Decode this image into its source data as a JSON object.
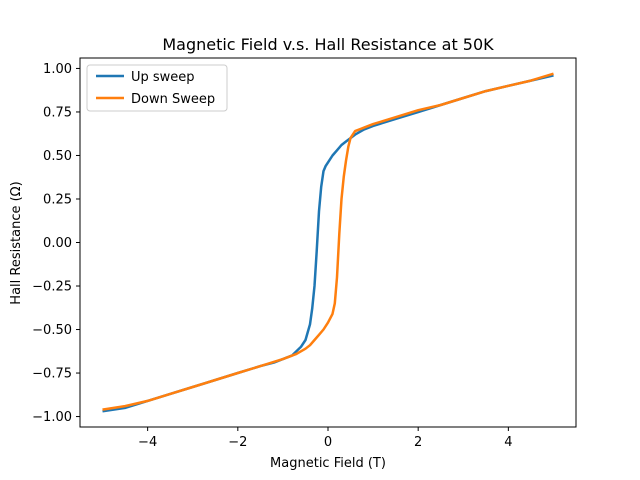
{
  "chart_data": {
    "type": "line",
    "title": "Magnetic Field v.s. Hall Resistance at 50K",
    "xlabel": "Magnetic Field (T)",
    "ylabel": "Hall Resistance (Ω)",
    "xlim": [
      -5.5,
      5.5
    ],
    "ylim": [
      -1.06,
      1.06
    ],
    "xticks": [
      -4,
      -2,
      0,
      2,
      4
    ],
    "xtick_labels": [
      "−4",
      "−2",
      "0",
      "2",
      "4"
    ],
    "yticks": [
      -1.0,
      -0.75,
      -0.5,
      -0.25,
      0.0,
      0.25,
      0.5,
      0.75,
      1.0
    ],
    "ytick_labels": [
      "−1.00",
      "−0.75",
      "−0.50",
      "−0.25",
      "0.00",
      "0.25",
      "0.50",
      "0.75",
      "1.00"
    ],
    "grid": false,
    "legend_position": "upper-left",
    "series": [
      {
        "name": "Up sweep",
        "color": "#1f77b4",
        "x": [
          -5.0,
          -4.5,
          -4.0,
          -3.5,
          -3.0,
          -2.5,
          -2.0,
          -1.5,
          -1.2,
          -1.0,
          -0.8,
          -0.6,
          -0.5,
          -0.4,
          -0.35,
          -0.3,
          -0.25,
          -0.2,
          -0.15,
          -0.1,
          -0.05,
          0.0,
          0.1,
          0.2,
          0.3,
          0.4,
          0.5,
          0.6,
          0.8,
          1.0,
          1.5,
          2.0,
          2.5,
          3.0,
          3.5,
          4.0,
          4.5,
          5.0
        ],
        "y": [
          -0.97,
          -0.95,
          -0.91,
          -0.87,
          -0.83,
          -0.79,
          -0.75,
          -0.71,
          -0.69,
          -0.67,
          -0.65,
          -0.6,
          -0.56,
          -0.47,
          -0.38,
          -0.25,
          -0.05,
          0.18,
          0.32,
          0.41,
          0.44,
          0.46,
          0.5,
          0.53,
          0.56,
          0.58,
          0.6,
          0.62,
          0.65,
          0.67,
          0.71,
          0.75,
          0.79,
          0.83,
          0.87,
          0.9,
          0.93,
          0.96
        ]
      },
      {
        "name": "Down Sweep",
        "color": "#ff7f0e",
        "x": [
          5.0,
          4.5,
          4.0,
          3.5,
          3.0,
          2.5,
          2.0,
          1.5,
          1.0,
          0.8,
          0.6,
          0.5,
          0.45,
          0.4,
          0.35,
          0.3,
          0.25,
          0.2,
          0.15,
          0.1,
          0.0,
          -0.1,
          -0.2,
          -0.3,
          -0.4,
          -0.5,
          -0.7,
          -1.0,
          -1.5,
          -2.0,
          -2.5,
          -3.0,
          -3.5,
          -4.0,
          -4.5,
          -5.0
        ],
        "y": [
          0.97,
          0.93,
          0.9,
          0.87,
          0.83,
          0.79,
          0.76,
          0.72,
          0.68,
          0.66,
          0.64,
          0.6,
          0.55,
          0.47,
          0.38,
          0.25,
          0.05,
          -0.2,
          -0.35,
          -0.41,
          -0.46,
          -0.5,
          -0.53,
          -0.56,
          -0.59,
          -0.61,
          -0.64,
          -0.67,
          -0.71,
          -0.75,
          -0.79,
          -0.83,
          -0.87,
          -0.91,
          -0.94,
          -0.96
        ]
      }
    ]
  }
}
